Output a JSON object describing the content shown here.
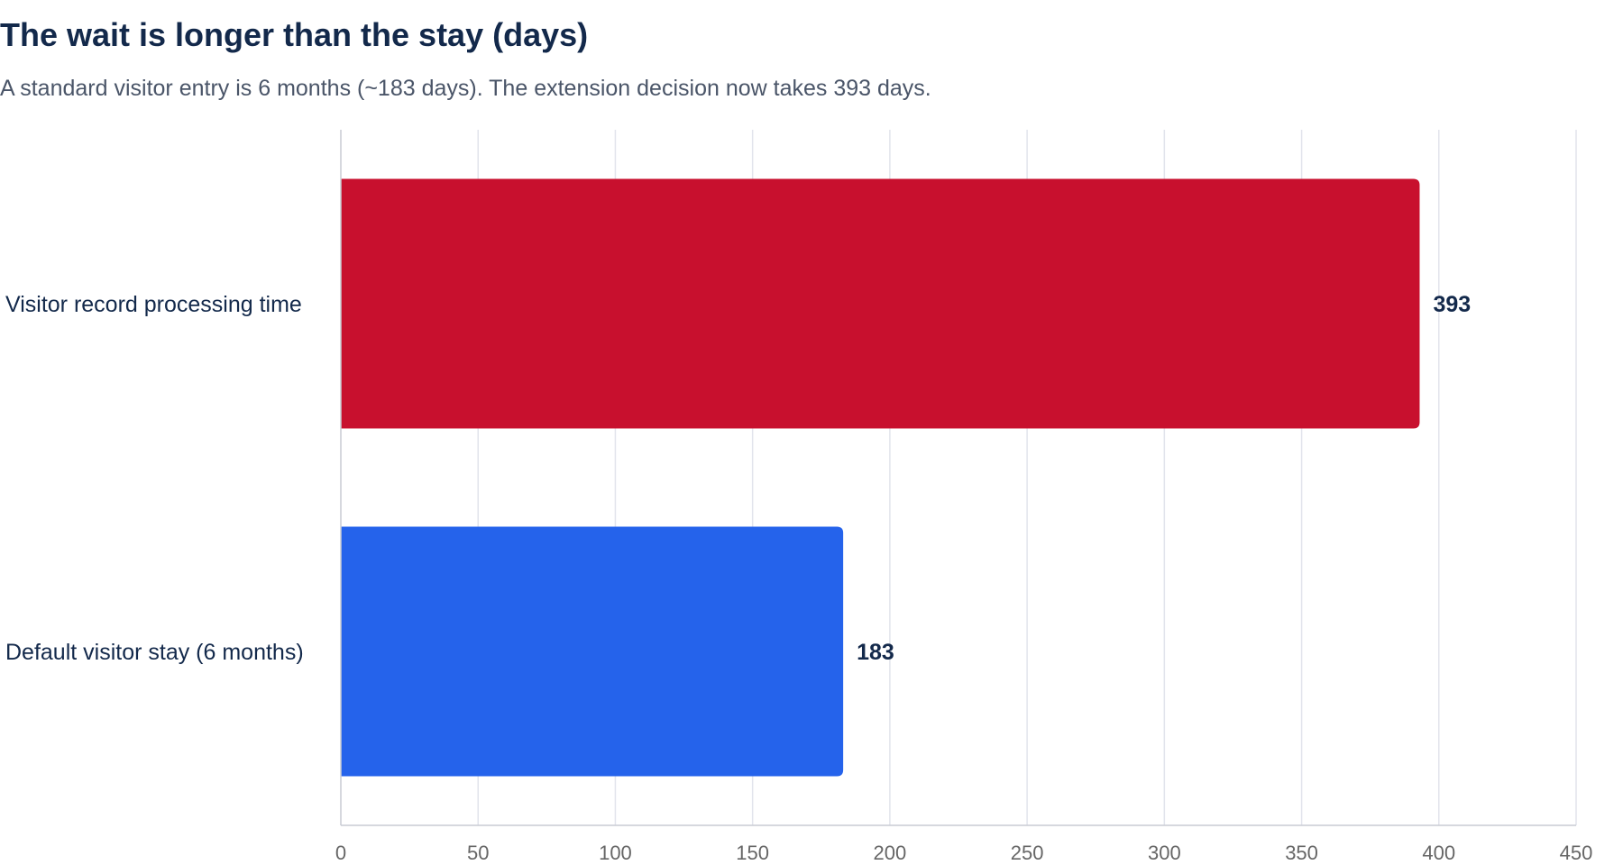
{
  "chart_data": {
    "type": "bar",
    "orientation": "horizontal",
    "title": "The wait is longer than the stay (days)",
    "subtitle": "A standard visitor entry is 6 months (~183 days). The extension decision now takes 393 days.",
    "categories": [
      "Visitor record processing time",
      "Default visitor stay (6 months)"
    ],
    "values": [
      393,
      183
    ],
    "colors": [
      "#c8102e",
      "#2563eb"
    ],
    "xlim": [
      0,
      450
    ],
    "xticks": [
      0,
      50,
      100,
      150,
      200,
      250,
      300,
      350,
      400,
      450
    ],
    "grid": true,
    "legend": "none"
  }
}
